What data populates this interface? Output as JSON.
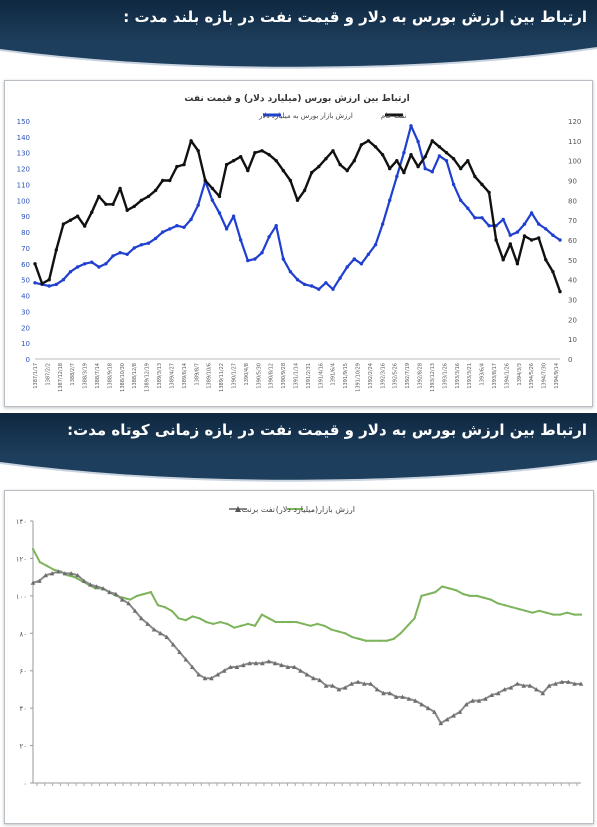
{
  "banners": {
    "long_term": "ارتباط بین ارزش بورس به دلار و قیمت نفت در بازه بلند مدت :",
    "short_term": "ارتباط بین ارزش بورس  به دلار و قیمت نفت در بازه زمانی کوتاه مدت:"
  },
  "colors": {
    "banner_bg": "#1a3656",
    "blue_series": "#1f3fd0",
    "black_series": "#111111",
    "green_series": "#7db35a",
    "gray_series": "#8a8a8a"
  },
  "chart_data": [
    {
      "type": "line",
      "title": "ارتباط بین ارزش بورس (میلیارد دلار) و قیمت نفت",
      "legend_position": "top",
      "grid": false,
      "y_left": {
        "min": 0,
        "max": 150,
        "ticks": [
          0,
          10,
          20,
          30,
          40,
          50,
          60,
          70,
          80,
          90,
          100,
          110,
          120,
          130,
          140,
          150
        ]
      },
      "y_right": {
        "min": 0,
        "max": 120,
        "ticks": [
          0,
          10,
          20,
          30,
          40,
          50,
          60,
          70,
          80,
          90,
          100,
          110,
          120
        ]
      },
      "x_ticks": [
        "1387/1/17",
        "1387/2/2",
        "1387/12/18",
        "1388/2/7",
        "1388/3/19",
        "1388/7/14",
        "1388/9/18",
        "1388/10/30",
        "1388/12/8",
        "1389/12/19",
        "1389/3/13",
        "1389/4/27",
        "1389/6/14",
        "1389/8/7",
        "1389/10/6",
        "1389/11/22",
        "1390/1/27",
        "1390/4/8",
        "1390/5/30",
        "1390/8/12",
        "1390/9/28",
        "1391/1/14",
        "1391/2/31",
        "1391/4/16",
        "1391/6/4",
        "1391/9/15",
        "1391/10/29",
        "1392/2/24",
        "1392/3/16",
        "1392/5/26",
        "1392/7/19",
        "1392/8/28",
        "1393/12/13",
        "1393/1/26",
        "1393/3/16",
        "1393/3/21",
        "1393/6/4",
        "1393/8/17",
        "1394/1/26",
        "1394/3/3",
        "1394/5/26",
        "1394/7/30",
        "1394/9/14"
      ],
      "series": [
        {
          "name": "ارزش بازار بورس به میلیارد دلار",
          "axis": "left",
          "color": "#1f3fd0",
          "values": [
            48,
            47,
            46,
            47,
            50,
            55,
            58,
            60,
            61,
            58,
            60,
            65,
            67,
            66,
            70,
            72,
            73,
            76,
            80,
            82,
            84,
            83,
            88,
            97,
            112,
            100,
            92,
            82,
            90,
            75,
            62,
            63,
            67,
            77,
            84,
            63,
            55,
            50,
            47,
            46,
            44,
            48,
            44,
            51,
            58,
            63,
            60,
            66,
            72,
            85,
            100,
            115,
            130,
            147,
            137,
            120,
            118,
            128,
            125,
            110,
            100,
            95,
            89,
            89,
            84,
            84,
            88,
            78,
            80,
            85,
            92,
            85,
            82,
            78,
            75
          ]
        },
        {
          "name": "نفت خام",
          "axis": "right",
          "color": "#111111",
          "values": [
            48,
            38,
            40,
            55,
            68,
            70,
            72,
            67,
            74,
            82,
            78,
            78,
            86,
            75,
            77,
            80,
            82,
            85,
            90,
            90,
            97,
            98,
            110,
            105,
            90,
            86,
            82,
            98,
            100,
            102,
            95,
            104,
            105,
            103,
            100,
            95,
            90,
            80,
            85,
            94,
            97,
            101,
            105,
            98,
            95,
            100,
            108,
            110,
            107,
            103,
            96,
            100,
            94,
            103,
            97,
            102,
            110,
            107,
            104,
            101,
            96,
            100,
            92,
            88,
            84,
            60,
            50,
            58,
            48,
            62,
            60,
            61,
            50,
            44,
            34
          ]
        }
      ]
    },
    {
      "type": "line",
      "title": "",
      "legend_position": "top",
      "grid": false,
      "y": {
        "min": 0,
        "max": 140,
        "ticks": [
          "۰",
          "۲۰",
          "۴۰",
          "۶۰",
          "۸۰",
          "۱۰۰",
          "۱۲۰",
          "۱۴۰"
        ]
      },
      "series": [
        {
          "name": "ارزش بازار(میلیارد دلار)",
          "color": "#7db35a",
          "values": [
            125,
            118,
            116,
            114,
            113,
            111,
            110,
            108,
            106,
            104,
            104,
            102,
            100,
            99,
            98,
            100,
            101,
            102,
            95,
            94,
            92,
            88,
            87,
            89,
            88,
            86,
            85,
            86,
            85,
            83,
            84,
            85,
            84,
            90,
            88,
            86,
            86,
            86,
            86,
            85,
            84,
            85,
            84,
            82,
            81,
            80,
            78,
            77,
            76,
            76,
            76,
            76,
            77,
            80,
            84,
            88,
            100,
            101,
            102,
            105,
            104,
            103,
            101,
            100,
            100,
            99,
            98,
            96,
            95,
            94,
            93,
            92,
            91,
            92,
            91,
            90,
            90,
            91,
            90,
            90
          ]
        },
        {
          "name": "نفت برنت",
          "color": "#8a8a8a",
          "values": [
            107,
            108,
            111,
            112,
            113,
            112,
            112,
            111,
            108,
            106,
            105,
            104,
            102,
            101,
            98,
            96,
            92,
            88,
            85,
            82,
            80,
            78,
            74,
            70,
            66,
            62,
            58,
            56,
            56,
            58,
            60,
            62,
            62,
            63,
            64,
            64,
            64,
            65,
            64,
            63,
            62,
            62,
            60,
            58,
            56,
            55,
            52,
            52,
            50,
            51,
            53,
            54,
            53,
            53,
            50,
            48,
            48,
            46,
            46,
            45,
            44,
            42,
            40,
            38,
            32,
            34,
            36,
            38,
            42,
            44,
            44,
            45,
            47,
            48,
            50,
            51,
            53,
            52,
            52,
            50,
            48,
            52,
            53,
            54,
            54,
            53,
            53
          ]
        }
      ]
    }
  ]
}
